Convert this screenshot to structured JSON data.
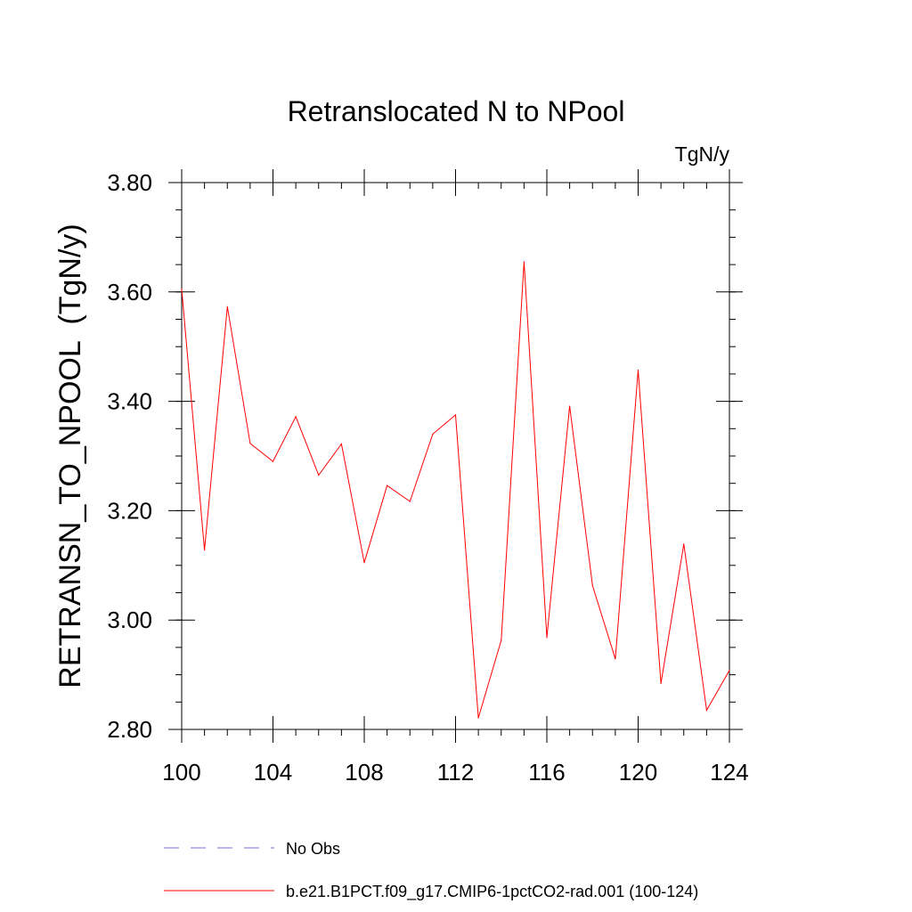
{
  "chart_data": {
    "type": "line",
    "title": "Retranslocated N to NPool",
    "units_label": "TgN/y",
    "ylabel": "RETRANSN_TO_NPOOL  (TgN/y)",
    "xlabel": "",
    "xlim": [
      100,
      124
    ],
    "ylim": [
      2.8,
      3.8
    ],
    "x_ticks": [
      100,
      104,
      108,
      112,
      116,
      120,
      124
    ],
    "x_tick_labels": [
      "100",
      "104",
      "108",
      "112",
      "116",
      "120",
      "124"
    ],
    "y_ticks": [
      2.8,
      3.0,
      3.2,
      3.4,
      3.6,
      3.8
    ],
    "y_tick_labels": [
      "2.80",
      "3.00",
      "3.20",
      "3.40",
      "3.60",
      "3.80"
    ],
    "grid": false,
    "legend_position": "bottom",
    "series": [
      {
        "name": "b.e21.B1PCT.f09_g17.CMIP6-1pctCO2-rad.001 (100-124)",
        "color": "#ff0000",
        "dash": "solid",
        "x": [
          100,
          101,
          102,
          103,
          104,
          105,
          106,
          107,
          108,
          109,
          110,
          111,
          112,
          113,
          114,
          115,
          116,
          117,
          118,
          119,
          120,
          121,
          122,
          123,
          124
        ],
        "values": [
          3.605,
          3.128,
          3.573,
          3.323,
          3.29,
          3.372,
          3.265,
          3.322,
          3.105,
          3.246,
          3.217,
          3.34,
          3.375,
          2.821,
          2.963,
          3.655,
          2.968,
          3.391,
          3.063,
          2.929,
          3.457,
          2.884,
          3.139,
          2.835,
          2.908
        ]
      }
    ],
    "legend": [
      {
        "label": "No Obs",
        "color": "#7a6fd0",
        "dash": "dashed"
      },
      {
        "label": "b.e21.B1PCT.f09_g17.CMIP6-1pctCO2-rad.001 (100-124)",
        "color": "#ff0000",
        "dash": "solid"
      }
    ]
  }
}
